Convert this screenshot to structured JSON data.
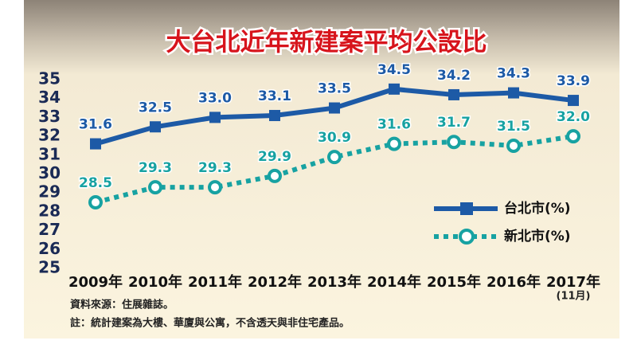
{
  "chart_data": {
    "type": "line",
    "title": "大台北近年新建案平均公設比",
    "categories": [
      "2009年",
      "2010年",
      "2011年",
      "2012年",
      "2013年",
      "2014年",
      "2015年",
      "2016年",
      "2017年"
    ],
    "category_note": "(11月)",
    "series": [
      {
        "name": "台北市(%)",
        "color": "#1d5aa6",
        "marker": "square",
        "dash": "solid",
        "values": [
          31.6,
          32.5,
          33.0,
          33.1,
          33.5,
          34.5,
          34.2,
          34.3,
          33.9
        ],
        "value_labels": [
          "31.6",
          "32.5",
          "33.0",
          "33.1",
          "33.5",
          "34.5",
          "34.2",
          "34.3",
          "33.9"
        ]
      },
      {
        "name": "新北市(%)",
        "color": "#17a2a2",
        "marker": "circle",
        "dash": "dotted",
        "values": [
          28.5,
          29.3,
          29.3,
          29.9,
          30.9,
          31.6,
          31.7,
          31.5,
          32.0
        ],
        "value_labels": [
          "28.5",
          "29.3",
          "29.3",
          "29.9",
          "30.9",
          "31.6",
          "31.7",
          "31.5",
          "32.0"
        ]
      }
    ],
    "ylim": [
      25,
      35
    ],
    "yticks": [
      25,
      26,
      27,
      28,
      29,
      30,
      31,
      32,
      33,
      34,
      35
    ],
    "grid": false,
    "legend": "right",
    "notes": [
      "資料來源：住展雜誌。",
      "註：統計建案為大樓、華廈與公寓，不含透天與非住宅產品。"
    ]
  }
}
